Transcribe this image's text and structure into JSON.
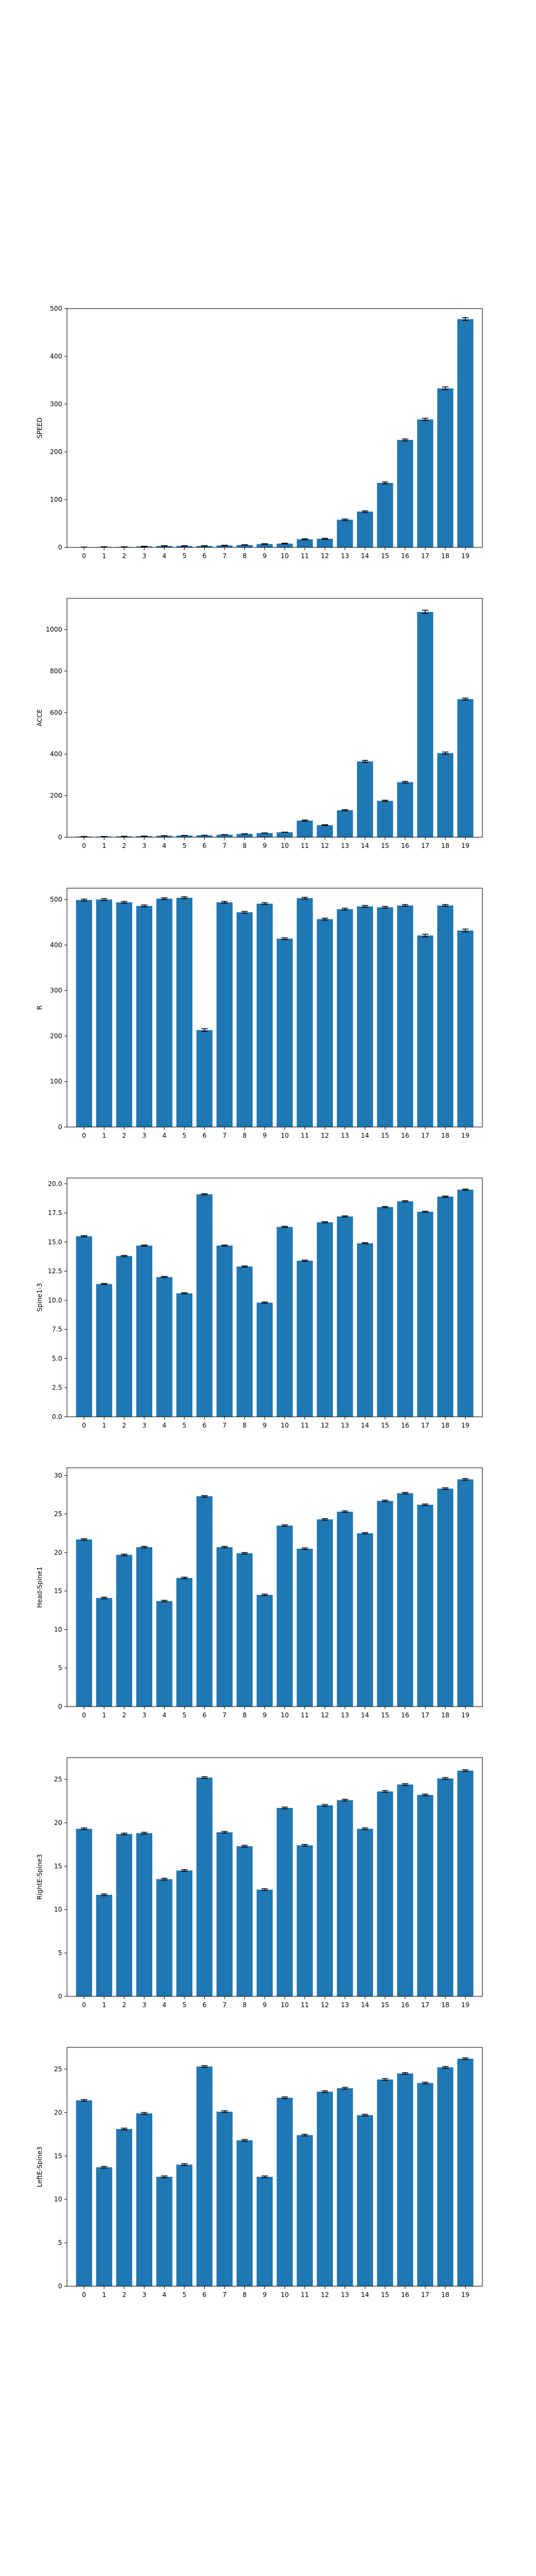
{
  "chart_data": [
    {
      "type": "bar",
      "ylabel": "SPEED",
      "categories": [
        "0",
        "1",
        "2",
        "3",
        "4",
        "5",
        "6",
        "7",
        "8",
        "9",
        "10",
        "11",
        "12",
        "13",
        "14",
        "15",
        "16",
        "17",
        "18",
        "19"
      ],
      "values": [
        0.5,
        1,
        1,
        2,
        3,
        3,
        3,
        4,
        5,
        7,
        8,
        17,
        18,
        58,
        75,
        135,
        225,
        268,
        333,
        478
      ],
      "errors": [
        0.2,
        0.3,
        0.3,
        0.5,
        0.5,
        0.5,
        0.5,
        0.5,
        0.5,
        0.8,
        0.8,
        1,
        1,
        1.5,
        1.5,
        2,
        2,
        2.5,
        3,
        3
      ],
      "ylim": [
        0,
        500
      ],
      "yticks": [
        0,
        100,
        200,
        300,
        400,
        500
      ],
      "color": "#1f77b4"
    },
    {
      "type": "bar",
      "ylabel": "ACCE",
      "categories": [
        "0",
        "1",
        "2",
        "3",
        "4",
        "5",
        "6",
        "7",
        "8",
        "9",
        "10",
        "11",
        "12",
        "13",
        "14",
        "15",
        "16",
        "17",
        "18",
        "19"
      ],
      "values": [
        3,
        3,
        4,
        5,
        7,
        8,
        9,
        12,
        16,
        20,
        24,
        80,
        58,
        130,
        365,
        175,
        265,
        1085,
        405,
        665
      ],
      "errors": [
        0.5,
        0.5,
        0.5,
        0.5,
        0.5,
        0.5,
        0.5,
        0.5,
        0.5,
        0.5,
        0.5,
        3,
        2,
        3,
        5,
        3,
        4,
        8,
        5,
        5
      ],
      "ylim": [
        0,
        1150
      ],
      "yticks": [
        0,
        200,
        400,
        600,
        800,
        1000
      ],
      "color": "#1f77b4"
    },
    {
      "type": "bar",
      "ylabel": "R",
      "categories": [
        "0",
        "1",
        "2",
        "3",
        "4",
        "5",
        "6",
        "7",
        "8",
        "9",
        "10",
        "11",
        "12",
        "13",
        "14",
        "15",
        "16",
        "17",
        "18",
        "19"
      ],
      "values": [
        499,
        500,
        494,
        486,
        502,
        504,
        213,
        494,
        472,
        491,
        414,
        503,
        457,
        479,
        485,
        483,
        487,
        421,
        487,
        432
      ],
      "errors": [
        2,
        2,
        2,
        2,
        2,
        2,
        3,
        2,
        2,
        2,
        2,
        2,
        2,
        2,
        2,
        2,
        2,
        3,
        2,
        3
      ],
      "ylim": [
        0,
        525
      ],
      "yticks": [
        0,
        100,
        200,
        300,
        400,
        500
      ],
      "color": "#1f77b4"
    },
    {
      "type": "bar",
      "ylabel": "Spine1-3",
      "categories": [
        "0",
        "1",
        "2",
        "3",
        "4",
        "5",
        "6",
        "7",
        "8",
        "9",
        "10",
        "11",
        "12",
        "13",
        "14",
        "15",
        "16",
        "17",
        "18",
        "19"
      ],
      "values": [
        15.5,
        11.4,
        13.8,
        14.7,
        12.0,
        10.6,
        19.1,
        14.7,
        12.9,
        9.8,
        16.3,
        13.4,
        16.7,
        17.2,
        14.9,
        18.0,
        18.5,
        17.6,
        18.9,
        19.5
      ],
      "errors": [
        0.05,
        0.05,
        0.05,
        0.05,
        0.05,
        0.05,
        0.05,
        0.05,
        0.05,
        0.05,
        0.05,
        0.05,
        0.05,
        0.05,
        0.05,
        0.05,
        0.05,
        0.05,
        0.05,
        0.05
      ],
      "ylim": [
        0,
        20.5
      ],
      "yticks": [
        0.0,
        2.5,
        5.0,
        7.5,
        10.0,
        12.5,
        15.0,
        17.5,
        20.0
      ],
      "color": "#1f77b4"
    },
    {
      "type": "bar",
      "ylabel": "Head-Spine1",
      "categories": [
        "0",
        "1",
        "2",
        "3",
        "4",
        "5",
        "6",
        "7",
        "8",
        "9",
        "10",
        "11",
        "12",
        "13",
        "14",
        "15",
        "16",
        "17",
        "18",
        "19"
      ],
      "values": [
        21.7,
        14.1,
        19.7,
        20.7,
        13.7,
        16.7,
        27.3,
        20.7,
        19.9,
        14.5,
        23.5,
        20.5,
        24.3,
        25.3,
        22.5,
        26.7,
        27.7,
        26.2,
        28.3,
        29.5
      ],
      "errors": [
        0.1,
        0.1,
        0.1,
        0.1,
        0.1,
        0.1,
        0.1,
        0.1,
        0.1,
        0.1,
        0.1,
        0.1,
        0.1,
        0.1,
        0.1,
        0.1,
        0.1,
        0.1,
        0.1,
        0.1
      ],
      "ylim": [
        0,
        31
      ],
      "yticks": [
        0,
        5,
        10,
        15,
        20,
        25,
        30
      ],
      "color": "#1f77b4"
    },
    {
      "type": "bar",
      "ylabel": "RightE-Spine3",
      "categories": [
        "0",
        "1",
        "2",
        "3",
        "4",
        "5",
        "6",
        "7",
        "8",
        "9",
        "10",
        "11",
        "12",
        "13",
        "14",
        "15",
        "16",
        "17",
        "18",
        "19"
      ],
      "values": [
        19.3,
        11.7,
        18.7,
        18.8,
        13.5,
        14.5,
        25.2,
        18.9,
        17.3,
        12.3,
        21.7,
        17.4,
        22.0,
        22.6,
        19.3,
        23.6,
        24.4,
        23.2,
        25.1,
        26.0
      ],
      "errors": [
        0.1,
        0.1,
        0.1,
        0.1,
        0.1,
        0.1,
        0.1,
        0.1,
        0.1,
        0.1,
        0.1,
        0.1,
        0.1,
        0.1,
        0.1,
        0.1,
        0.1,
        0.1,
        0.1,
        0.1
      ],
      "ylim": [
        0,
        27.5
      ],
      "yticks": [
        0,
        5,
        10,
        15,
        20,
        25
      ],
      "color": "#1f77b4"
    },
    {
      "type": "bar",
      "ylabel": "LeftE-Spine3",
      "categories": [
        "0",
        "1",
        "2",
        "3",
        "4",
        "5",
        "6",
        "7",
        "8",
        "9",
        "10",
        "11",
        "12",
        "13",
        "14",
        "15",
        "16",
        "17",
        "18",
        "19"
      ],
      "values": [
        21.4,
        13.7,
        18.1,
        19.9,
        12.6,
        14.0,
        25.3,
        20.1,
        16.8,
        12.6,
        21.7,
        17.4,
        22.4,
        22.8,
        19.7,
        23.8,
        24.5,
        23.4,
        25.2,
        26.2
      ],
      "errors": [
        0.1,
        0.1,
        0.1,
        0.1,
        0.1,
        0.1,
        0.1,
        0.1,
        0.1,
        0.1,
        0.1,
        0.1,
        0.1,
        0.1,
        0.1,
        0.1,
        0.1,
        0.1,
        0.1,
        0.1
      ],
      "ylim": [
        0,
        27.5
      ],
      "yticks": [
        0,
        5,
        10,
        15,
        20,
        25
      ],
      "color": "#1f77b4"
    }
  ]
}
